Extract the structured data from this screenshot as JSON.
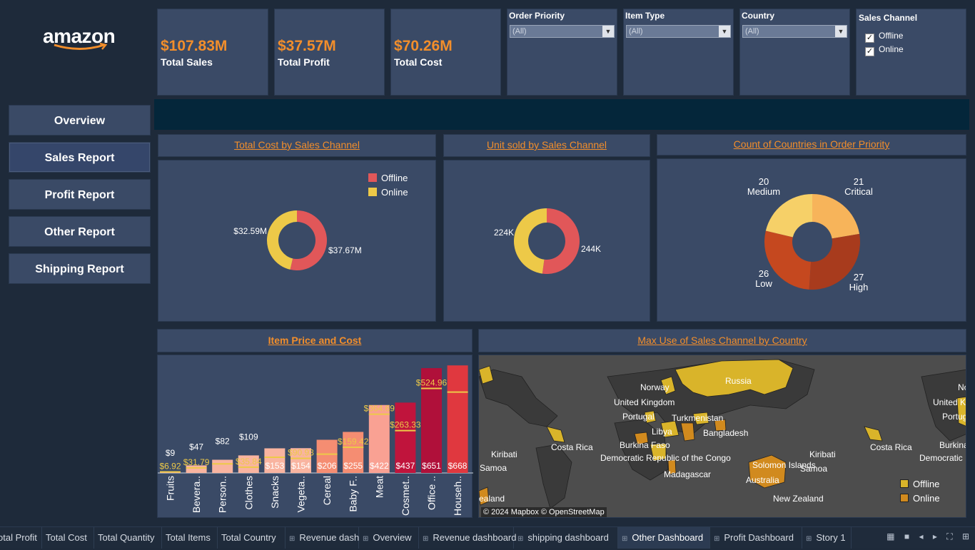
{
  "colors": {
    "accent": "#f28e2b",
    "offline": "#e15759",
    "online": "#edc948",
    "background": "#1e2a3a",
    "panel": "#3a4a66"
  },
  "logo": {
    "text": "amazon"
  },
  "kpis": [
    {
      "value": "$107.83M",
      "label": "Total Sales"
    },
    {
      "value": "$37.57M",
      "label": "Total Profit"
    },
    {
      "value": "$70.26M",
      "label": "Total Cost"
    }
  ],
  "filters": {
    "order_priority": {
      "title": "Order Priority",
      "value": "(All)"
    },
    "item_type": {
      "title": "Item Type",
      "value": "(All)"
    },
    "country": {
      "title": "Country",
      "value": "(All)"
    },
    "sales_channel": {
      "title": "Sales Channel",
      "options": [
        {
          "label": "Offline",
          "checked": true
        },
        {
          "label": "Online",
          "checked": true
        }
      ]
    }
  },
  "nav": [
    {
      "label": "Overview"
    },
    {
      "label": "Sales Report"
    },
    {
      "label": "Profit Report"
    },
    {
      "label": "Other Report"
    },
    {
      "label": "Shipping Report"
    }
  ],
  "chart_data": [
    {
      "type": "pie",
      "title": "Total Cost by Sales Channel",
      "legend": [
        "Offline",
        "Online"
      ],
      "slices": [
        {
          "name": "Offline",
          "value": 37.67,
          "label": "$37.67M",
          "color": "#e15759"
        },
        {
          "name": "Online",
          "value": 32.59,
          "label": "$32.59M",
          "color": "#edc948"
        }
      ]
    },
    {
      "type": "pie",
      "title": "Unit sold by Sales Channel",
      "slices": [
        {
          "name": "Offline",
          "value": 244,
          "label": "244K",
          "color": "#e15759"
        },
        {
          "name": "Online",
          "value": 224,
          "label": "224K",
          "color": "#edc948"
        }
      ]
    },
    {
      "type": "pie",
      "title": "Count of Countries in Order Priority",
      "slices": [
        {
          "name": "Critical",
          "value": 21,
          "color": "#f7b45a"
        },
        {
          "name": "High",
          "value": 27,
          "color": "#a83b1d"
        },
        {
          "name": "Low",
          "value": 26,
          "color": "#c5481f"
        },
        {
          "name": "Medium",
          "value": 20,
          "color": "#f6d068"
        }
      ]
    },
    {
      "type": "bar",
      "title": "Item Price and Cost",
      "categories": [
        "Fruits",
        "Bevera..",
        "Person..",
        "Clothes",
        "Snacks",
        "Vegeta..",
        "Cereal",
        "Baby F..",
        "Meat",
        "Cosmet..",
        "Office ..",
        "Househ.."
      ],
      "price": [
        9,
        47,
        82,
        109,
        153,
        154,
        206,
        255,
        422,
        437,
        651,
        668
      ],
      "price_labels": [
        "$9",
        "$47",
        "$82",
        "$109",
        "$153",
        "$154",
        "$206",
        "$255",
        "$422",
        "$437",
        "$651",
        "$668"
      ],
      "cost": [
        6.92,
        31.79,
        56.67,
        35.84,
        97.44,
        90.93,
        117.11,
        159.42,
        364.69,
        263.33,
        524.96,
        502.54
      ],
      "cost_labels": [
        "$6.92",
        "$31.79",
        "",
        "$35.84",
        "",
        "$90.93",
        "",
        "$159.42",
        "$364.69",
        "$263.33",
        "$524.96",
        ""
      ],
      "bar_colors": [
        "#f9b4a0",
        "#f9b4a0",
        "#f9b4a0",
        "#f9b4a0",
        "#f9b4a0",
        "#f9b4a0",
        "#f58d72",
        "#f58d72",
        "#f9a193",
        "#c0143c",
        "#b0103a",
        "#e0383f"
      ],
      "ylim": [
        0,
        700
      ]
    }
  ],
  "map": {
    "title": "Max Use of Sales Channel by Country",
    "attribution": "© 2024 Mapbox © OpenStreetMap",
    "labels": [
      "Russia",
      "Norway",
      "United Kingdom",
      "Portugal",
      "Turkmenistan",
      "Libya",
      "Bangladesh",
      "Kiribati",
      "Costa Rica",
      "Burkina Faso",
      "Democratic Republic of the Congo",
      "Solomon Islands",
      "Samoa",
      "Madagascar",
      "Australia",
      "New Zealand",
      "Kiribati",
      "Samoa",
      "Costa Rica",
      "Burkina Faso",
      "Democratic",
      "United Kingdom",
      "Portugal",
      "No",
      "ealand"
    ],
    "legend": [
      "Offline",
      "Online"
    ]
  },
  "tabs": [
    {
      "label": "otal Profit",
      "grid": false
    },
    {
      "label": "Total Cost",
      "grid": false
    },
    {
      "label": "Total Quantity",
      "grid": false
    },
    {
      "label": "Total Items",
      "grid": false
    },
    {
      "label": "Total Country",
      "grid": false
    },
    {
      "label": "Revenue dash",
      "grid": true
    },
    {
      "label": "Overview",
      "grid": true
    },
    {
      "label": "Revenue dashboard",
      "grid": true
    },
    {
      "label": "shipping dashboard",
      "grid": true
    },
    {
      "label": "Other Dashboard",
      "grid": true,
      "active": true
    },
    {
      "label": "Profit Dashboard",
      "grid": true
    },
    {
      "label": "Story 1",
      "grid": true
    }
  ]
}
